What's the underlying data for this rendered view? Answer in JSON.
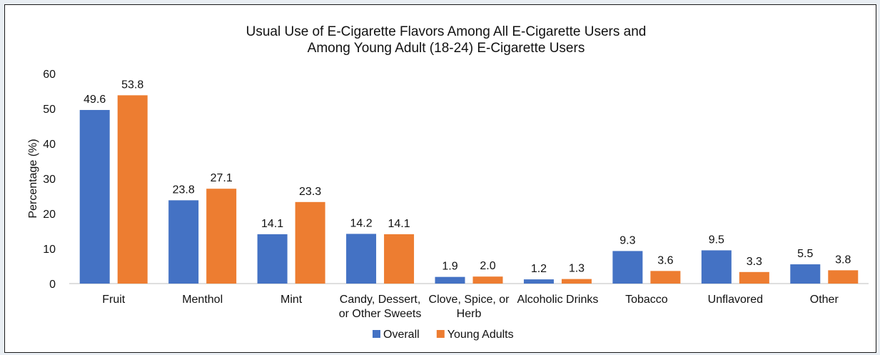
{
  "chart_data": {
    "type": "bar",
    "title_lines": [
      "Usual Use of E-Cigarette Flavors Among All E-Cigarette Users and",
      "Among Young Adult (18-24) E-Cigarette Users"
    ],
    "xlabel": "",
    "ylabel": "Percentage (%)",
    "ylim": [
      0,
      60
    ],
    "yticks": [
      0,
      10,
      20,
      30,
      40,
      50,
      60
    ],
    "grid": false,
    "legend_position": "bottom",
    "categories": [
      [
        "Fruit"
      ],
      [
        "Menthol"
      ],
      [
        "Mint"
      ],
      [
        "Candy, Dessert,",
        "or  Other Sweets"
      ],
      [
        "Clove, Spice, or",
        "Herb"
      ],
      [
        "Alcoholic Drinks"
      ],
      [
        "Tobacco"
      ],
      [
        "Unflavored"
      ],
      [
        "Other"
      ]
    ],
    "series": [
      {
        "name": "Overall",
        "color": "#4472c4",
        "values": [
          49.6,
          23.8,
          14.1,
          14.2,
          1.9,
          1.2,
          9.3,
          9.5,
          5.5
        ],
        "labels": [
          "49.6",
          "23.8",
          "14.1",
          "14.2",
          "1.9",
          "1.2",
          "9.3",
          "9.5",
          "5.5"
        ]
      },
      {
        "name": "Young Adults",
        "color": "#ed7d31",
        "values": [
          53.8,
          27.1,
          23.3,
          14.1,
          2.0,
          1.3,
          3.6,
          3.3,
          3.8
        ],
        "labels": [
          "53.8",
          "27.1",
          "23.3",
          "14.1",
          "2.0",
          "1.3",
          "3.6",
          "3.3",
          "3.8"
        ]
      }
    ]
  }
}
